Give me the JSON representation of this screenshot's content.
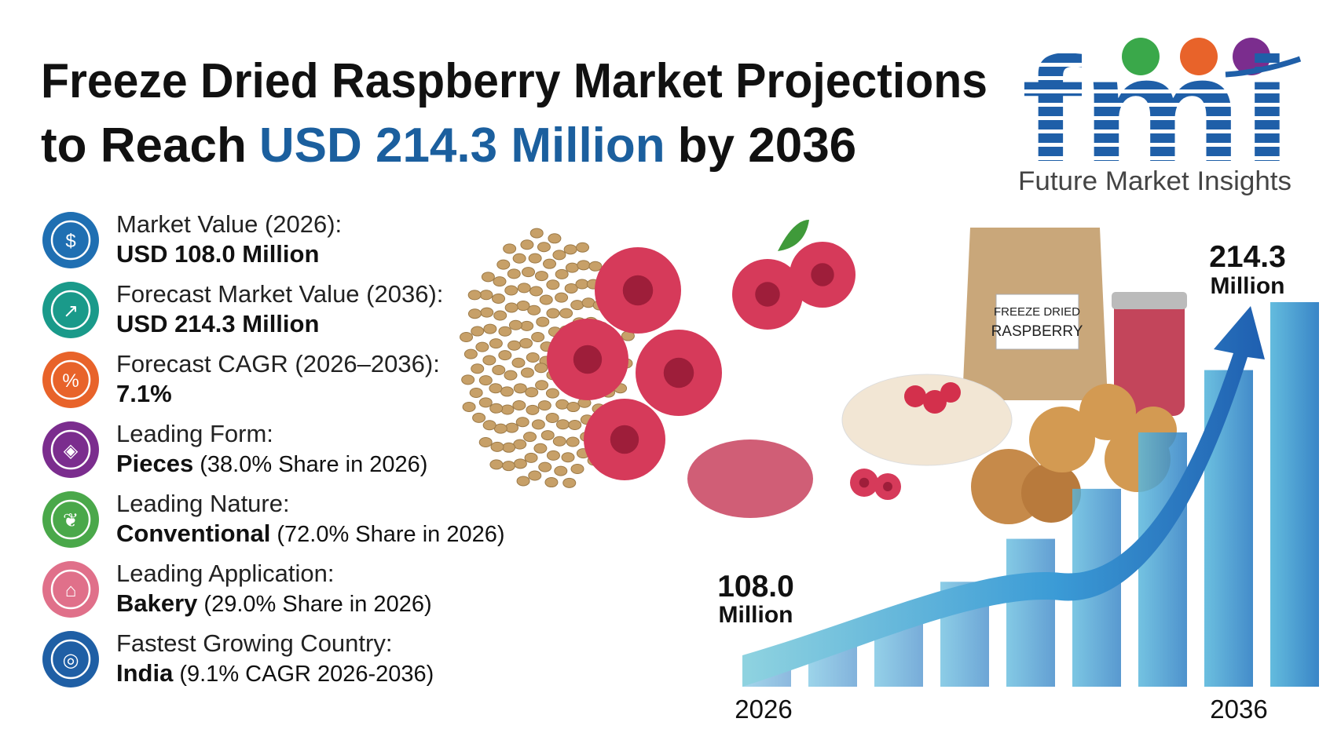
{
  "title": {
    "line1": "Freeze Dried Raspberry Market Projections",
    "prefix": "to Reach",
    "highlight": "USD 214.3 Million",
    "suffix": "by 2036"
  },
  "logo": {
    "mark": "fmi",
    "name": "Future Market Insights"
  },
  "stats": [
    {
      "label": "Market Value (2026):",
      "value": "USD 108.0 Million"
    },
    {
      "label": "Forecast Market Value (2036):",
      "value": "USD 214.3 Million"
    },
    {
      "label": "Forecast CAGR (2026–2036):",
      "value": "7.1%"
    },
    {
      "label": "Leading Form:",
      "value": "Pieces",
      "detail": "(38.0% Share in 2026)"
    },
    {
      "label": "Leading Nature:",
      "value": "Conventional",
      "detail": "(72.0% Share in 2026)"
    },
    {
      "label": "Leading Application:",
      "value": "Bakery",
      "detail": "(29.0% Share in 2026)"
    },
    {
      "label": "Fastest Growing Country:",
      "value": "India",
      "detail": "(9.1% CAGR 2026-2036)"
    }
  ],
  "package": {
    "line1": "FREEZE DRIED",
    "line2": "RASPBERRY"
  },
  "growth": {
    "start_value": "108.0",
    "start_unit": "Million",
    "start_year": "2026",
    "end_value": "214.3",
    "end_unit": "Million",
    "end_year": "2036"
  }
}
